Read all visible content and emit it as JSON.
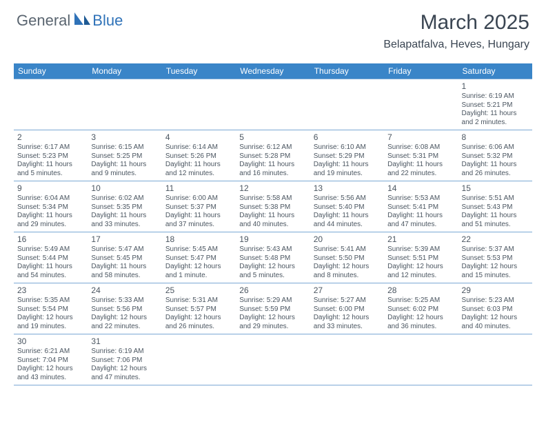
{
  "brand": {
    "part1": "General",
    "part2": "Blue"
  },
  "title": "March 2025",
  "location": "Belapatfalva, Heves, Hungary",
  "theme": {
    "header_bg": "#3a85c8",
    "header_text": "#ffffff",
    "border_color": "#7aa8d4",
    "text_color": "#4a5560",
    "empty_bg": "#f0f0f0",
    "page_bg": "#ffffff",
    "brand_gray": "#5a6570",
    "brand_blue": "#2f72b8"
  },
  "day_headers": [
    "Sunday",
    "Monday",
    "Tuesday",
    "Wednesday",
    "Thursday",
    "Friday",
    "Saturday"
  ],
  "weeks": [
    [
      null,
      null,
      null,
      null,
      null,
      null,
      {
        "n": "1",
        "sr": "Sunrise: 6:19 AM",
        "ss": "Sunset: 5:21 PM",
        "d1": "Daylight: 11 hours",
        "d2": "and 2 minutes."
      }
    ],
    [
      {
        "n": "2",
        "sr": "Sunrise: 6:17 AM",
        "ss": "Sunset: 5:23 PM",
        "d1": "Daylight: 11 hours",
        "d2": "and 5 minutes."
      },
      {
        "n": "3",
        "sr": "Sunrise: 6:15 AM",
        "ss": "Sunset: 5:25 PM",
        "d1": "Daylight: 11 hours",
        "d2": "and 9 minutes."
      },
      {
        "n": "4",
        "sr": "Sunrise: 6:14 AM",
        "ss": "Sunset: 5:26 PM",
        "d1": "Daylight: 11 hours",
        "d2": "and 12 minutes."
      },
      {
        "n": "5",
        "sr": "Sunrise: 6:12 AM",
        "ss": "Sunset: 5:28 PM",
        "d1": "Daylight: 11 hours",
        "d2": "and 16 minutes."
      },
      {
        "n": "6",
        "sr": "Sunrise: 6:10 AM",
        "ss": "Sunset: 5:29 PM",
        "d1": "Daylight: 11 hours",
        "d2": "and 19 minutes."
      },
      {
        "n": "7",
        "sr": "Sunrise: 6:08 AM",
        "ss": "Sunset: 5:31 PM",
        "d1": "Daylight: 11 hours",
        "d2": "and 22 minutes."
      },
      {
        "n": "8",
        "sr": "Sunrise: 6:06 AM",
        "ss": "Sunset: 5:32 PM",
        "d1": "Daylight: 11 hours",
        "d2": "and 26 minutes."
      }
    ],
    [
      {
        "n": "9",
        "sr": "Sunrise: 6:04 AM",
        "ss": "Sunset: 5:34 PM",
        "d1": "Daylight: 11 hours",
        "d2": "and 29 minutes."
      },
      {
        "n": "10",
        "sr": "Sunrise: 6:02 AM",
        "ss": "Sunset: 5:35 PM",
        "d1": "Daylight: 11 hours",
        "d2": "and 33 minutes."
      },
      {
        "n": "11",
        "sr": "Sunrise: 6:00 AM",
        "ss": "Sunset: 5:37 PM",
        "d1": "Daylight: 11 hours",
        "d2": "and 37 minutes."
      },
      {
        "n": "12",
        "sr": "Sunrise: 5:58 AM",
        "ss": "Sunset: 5:38 PM",
        "d1": "Daylight: 11 hours",
        "d2": "and 40 minutes."
      },
      {
        "n": "13",
        "sr": "Sunrise: 5:56 AM",
        "ss": "Sunset: 5:40 PM",
        "d1": "Daylight: 11 hours",
        "d2": "and 44 minutes."
      },
      {
        "n": "14",
        "sr": "Sunrise: 5:53 AM",
        "ss": "Sunset: 5:41 PM",
        "d1": "Daylight: 11 hours",
        "d2": "and 47 minutes."
      },
      {
        "n": "15",
        "sr": "Sunrise: 5:51 AM",
        "ss": "Sunset: 5:43 PM",
        "d1": "Daylight: 11 hours",
        "d2": "and 51 minutes."
      }
    ],
    [
      {
        "n": "16",
        "sr": "Sunrise: 5:49 AM",
        "ss": "Sunset: 5:44 PM",
        "d1": "Daylight: 11 hours",
        "d2": "and 54 minutes."
      },
      {
        "n": "17",
        "sr": "Sunrise: 5:47 AM",
        "ss": "Sunset: 5:45 PM",
        "d1": "Daylight: 11 hours",
        "d2": "and 58 minutes."
      },
      {
        "n": "18",
        "sr": "Sunrise: 5:45 AM",
        "ss": "Sunset: 5:47 PM",
        "d1": "Daylight: 12 hours",
        "d2": "and 1 minute."
      },
      {
        "n": "19",
        "sr": "Sunrise: 5:43 AM",
        "ss": "Sunset: 5:48 PM",
        "d1": "Daylight: 12 hours",
        "d2": "and 5 minutes."
      },
      {
        "n": "20",
        "sr": "Sunrise: 5:41 AM",
        "ss": "Sunset: 5:50 PM",
        "d1": "Daylight: 12 hours",
        "d2": "and 8 minutes."
      },
      {
        "n": "21",
        "sr": "Sunrise: 5:39 AM",
        "ss": "Sunset: 5:51 PM",
        "d1": "Daylight: 12 hours",
        "d2": "and 12 minutes."
      },
      {
        "n": "22",
        "sr": "Sunrise: 5:37 AM",
        "ss": "Sunset: 5:53 PM",
        "d1": "Daylight: 12 hours",
        "d2": "and 15 minutes."
      }
    ],
    [
      {
        "n": "23",
        "sr": "Sunrise: 5:35 AM",
        "ss": "Sunset: 5:54 PM",
        "d1": "Daylight: 12 hours",
        "d2": "and 19 minutes."
      },
      {
        "n": "24",
        "sr": "Sunrise: 5:33 AM",
        "ss": "Sunset: 5:56 PM",
        "d1": "Daylight: 12 hours",
        "d2": "and 22 minutes."
      },
      {
        "n": "25",
        "sr": "Sunrise: 5:31 AM",
        "ss": "Sunset: 5:57 PM",
        "d1": "Daylight: 12 hours",
        "d2": "and 26 minutes."
      },
      {
        "n": "26",
        "sr": "Sunrise: 5:29 AM",
        "ss": "Sunset: 5:59 PM",
        "d1": "Daylight: 12 hours",
        "d2": "and 29 minutes."
      },
      {
        "n": "27",
        "sr": "Sunrise: 5:27 AM",
        "ss": "Sunset: 6:00 PM",
        "d1": "Daylight: 12 hours",
        "d2": "and 33 minutes."
      },
      {
        "n": "28",
        "sr": "Sunrise: 5:25 AM",
        "ss": "Sunset: 6:02 PM",
        "d1": "Daylight: 12 hours",
        "d2": "and 36 minutes."
      },
      {
        "n": "29",
        "sr": "Sunrise: 5:23 AM",
        "ss": "Sunset: 6:03 PM",
        "d1": "Daylight: 12 hours",
        "d2": "and 40 minutes."
      }
    ],
    [
      {
        "n": "30",
        "sr": "Sunrise: 6:21 AM",
        "ss": "Sunset: 7:04 PM",
        "d1": "Daylight: 12 hours",
        "d2": "and 43 minutes."
      },
      {
        "n": "31",
        "sr": "Sunrise: 6:19 AM",
        "ss": "Sunset: 7:06 PM",
        "d1": "Daylight: 12 hours",
        "d2": "and 47 minutes."
      },
      null,
      null,
      null,
      null,
      null
    ]
  ]
}
